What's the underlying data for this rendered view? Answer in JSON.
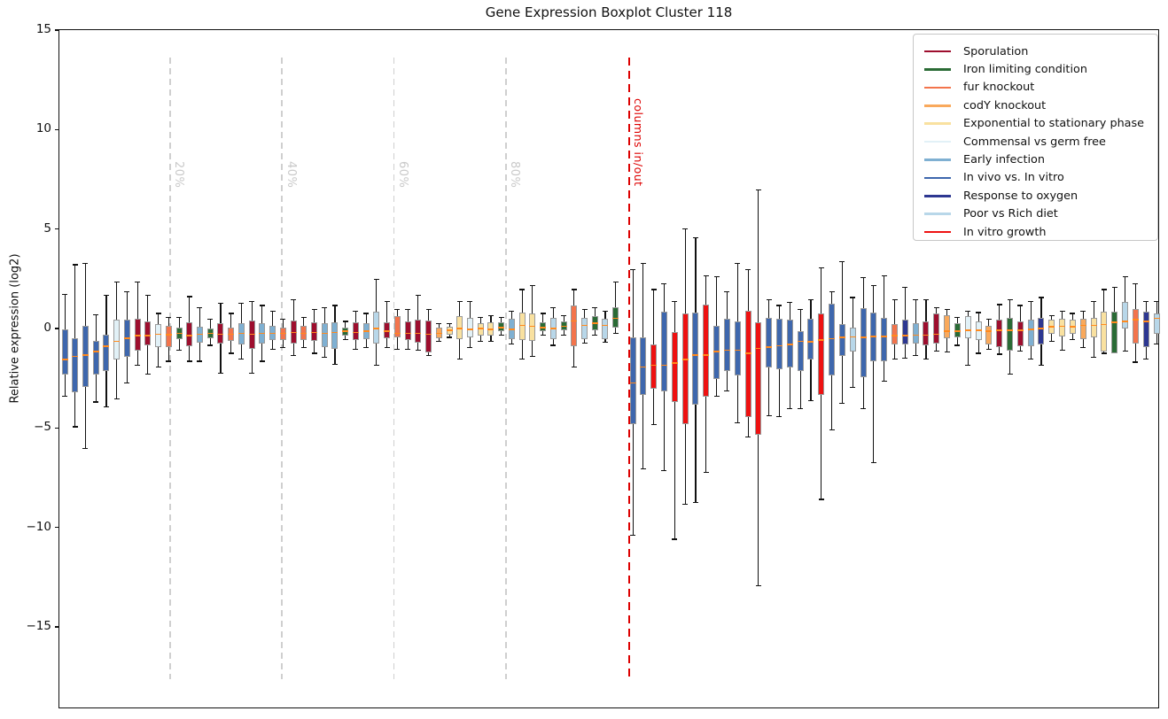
{
  "figure": {
    "title": "Gene Expression Boxplot Cluster 118",
    "y_axis_label": "Relative expression (log2)"
  },
  "y_axis": {
    "ticks": [
      {
        "v": 15,
        "label": "15"
      },
      {
        "v": 10,
        "label": "10"
      },
      {
        "v": 5,
        "label": "5"
      },
      {
        "v": 0,
        "label": "0"
      },
      {
        "v": -5,
        "label": "−5"
      },
      {
        "v": -10,
        "label": "−10"
      },
      {
        "v": -15,
        "label": "−15"
      }
    ]
  },
  "annotations": {
    "percent_lines": [
      {
        "pct": 20,
        "label": "20%"
      },
      {
        "pct": 40,
        "label": "40%"
      },
      {
        "pct": 60,
        "label": "60%"
      },
      {
        "pct": 80,
        "label": "80%"
      }
    ],
    "percent_line_color": "#cfcfcf",
    "percent_label_color": "#c9c9c9",
    "divider": {
      "label": "columns in/out",
      "color": "#dd0000"
    }
  },
  "legend": {
    "items": [
      {
        "label": "Sporulation",
        "group": "sporulation"
      },
      {
        "label": "Iron limiting condition",
        "group": "iron"
      },
      {
        "label": "fur knockout",
        "group": "fur"
      },
      {
        "label": "codY knockout",
        "group": "codY"
      },
      {
        "label": "Exponential to stationary phase",
        "group": "expo"
      },
      {
        "label": "Commensal vs germ free",
        "group": "commensal"
      },
      {
        "label": "Early infection",
        "group": "early"
      },
      {
        "label": "In vivo vs. In vitro",
        "group": "invivo"
      },
      {
        "label": "Response to oxygen",
        "group": "oxygen"
      },
      {
        "label": "Poor vs Rich diet",
        "group": "poorrich"
      },
      {
        "label": "In vitro growth",
        "group": "invitro"
      }
    ]
  },
  "chart_data": {
    "type": "boxplot",
    "title": "Gene Expression Boxplot Cluster 118",
    "xlabel": "",
    "ylabel": "Relative expression (log2)",
    "ylim": [
      -19.1,
      15.05
    ],
    "y_ticks": [
      15,
      10,
      5,
      0,
      -5,
      -10,
      -15
    ],
    "grid": false,
    "legend_position": "upper right",
    "median_color": "#ff8a1e",
    "whisker_color": "#111111",
    "box_edge_color": "#9a9a9a",
    "group_colors": {
      "sporulation": "#9e0e2e",
      "iron": "#2a6b35",
      "fur": "#f3744c",
      "codY": "#f9a95c",
      "expo": "#f9e1a0",
      "commensal": "#e2f1f7",
      "early": "#7fb0d2",
      "invivo": "#3e67ad",
      "oxygen": "#2d3791",
      "poorrich": "#b8d7e9",
      "invitro": "#ee1111"
    },
    "box_format": [
      "group",
      "median",
      "q1",
      "q3",
      "whisker_low",
      "whisker_high"
    ],
    "boxes_in": [
      [
        "invivo",
        -1.5,
        -2.25,
        0,
        -3.35,
        1.75
      ],
      [
        "invivo",
        -1.35,
        -3.15,
        -0.45,
        -4.9,
        3.25
      ],
      [
        "invivo",
        -1.3,
        -2.9,
        0.2,
        -6,
        3.3
      ],
      [
        "invivo",
        -1.1,
        -2.25,
        -0.6,
        -3.65,
        0.75
      ],
      [
        "invivo",
        -0.85,
        -2.1,
        -0.25,
        -3.9,
        1.7
      ],
      [
        "commensal",
        -0.6,
        -1.5,
        0.5,
        -3.5,
        2.4
      ],
      [
        "invivo",
        -0.45,
        -1.4,
        0.5,
        -2.7,
        1.9
      ],
      [
        "sporulation",
        -0.3,
        -1.05,
        0.55,
        -1.8,
        2.4
      ],
      [
        "sporulation",
        -0.3,
        -0.8,
        0.4,
        -2.25,
        1.7
      ],
      [
        "commensal",
        -0.25,
        -0.9,
        0.25,
        -1.9,
        0.8
      ],
      [
        "fur",
        -0.27,
        -0.9,
        0.2,
        -1.6,
        0.6
      ],
      [
        "iron",
        -0.2,
        -0.5,
        0.1,
        -1.05,
        0.6
      ],
      [
        "sporulation",
        -0.3,
        -0.85,
        0.35,
        -1.6,
        1.65
      ],
      [
        "early",
        -0.24,
        -0.65,
        0.15,
        -1.6,
        1.1
      ],
      [
        "iron",
        -0.2,
        -0.45,
        0.05,
        -0.8,
        0.5
      ],
      [
        "sporulation",
        -0.25,
        -0.7,
        0.3,
        -2.2,
        1.3
      ],
      [
        "fur",
        -0.25,
        -0.6,
        0.1,
        -1.2,
        0.8
      ],
      [
        "early",
        -0.2,
        -0.75,
        0.3,
        -1.5,
        1.3
      ],
      [
        "sporulation",
        -0.25,
        -1,
        0.45,
        -2.2,
        1.4
      ],
      [
        "early",
        -0.2,
        -0.7,
        0.3,
        -1.6,
        1.2
      ],
      [
        "early",
        -0.2,
        -0.55,
        0.2,
        -1,
        0.9
      ],
      [
        "fur",
        -0.2,
        -0.55,
        0.1,
        -0.9,
        0.5
      ],
      [
        "sporulation",
        -0.15,
        -0.7,
        0.45,
        -1.3,
        1.5
      ],
      [
        "fur",
        -0.2,
        -0.55,
        0.2,
        -0.9,
        0.6
      ],
      [
        "sporulation",
        -0.15,
        -0.6,
        0.35,
        -1.2,
        1
      ],
      [
        "early",
        -0.2,
        -0.9,
        0.3,
        -1.4,
        1.1
      ],
      [
        "early",
        -0.15,
        -1,
        0.35,
        -1.75,
        1.2
      ],
      [
        "iron",
        -0.1,
        -0.3,
        0.1,
        -0.5,
        0.4
      ],
      [
        "sporulation",
        -0.15,
        -0.55,
        0.35,
        -1,
        0.9
      ],
      [
        "early",
        -0.1,
        -0.5,
        0.3,
        -0.9,
        0.8
      ],
      [
        "poorrich",
        0.05,
        -0.7,
        0.9,
        -1.8,
        2.5
      ],
      [
        "sporulation",
        -0.1,
        -0.45,
        0.35,
        -0.9,
        1.4
      ],
      [
        "fur",
        -0.2,
        -0.4,
        0.65,
        -1,
        1
      ],
      [
        "sporulation",
        -0.2,
        -0.55,
        0.4,
        -1,
        1
      ],
      [
        "sporulation",
        -0.2,
        -0.65,
        0.5,
        -1.05,
        1.7
      ],
      [
        "sporulation",
        -0.25,
        -1.15,
        0.45,
        -1.3,
        1
      ],
      [
        "codY",
        -0.2,
        -0.45,
        0.1,
        -0.6,
        0.3
      ],
      [
        "expo",
        -0.05,
        -0.25,
        0.15,
        -0.4,
        0.3
      ],
      [
        "expo",
        0.05,
        -0.5,
        0.65,
        -1.5,
        1.4
      ],
      [
        "commensal",
        0,
        -0.4,
        0.6,
        -0.9,
        1.4
      ],
      [
        "expo",
        0.05,
        -0.3,
        0.3,
        -0.6,
        0.6
      ],
      [
        "expo",
        0,
        -0.3,
        0.35,
        -0.6,
        0.7
      ],
      [
        "iron",
        0.1,
        -0.1,
        0.35,
        -0.3,
        0.6
      ],
      [
        "early",
        0,
        -0.5,
        0.55,
        -0.75,
        0.9
      ],
      [
        "expo",
        0.2,
        -0.55,
        0.85,
        -1.5,
        2
      ],
      [
        "expo",
        0.15,
        -0.6,
        0.8,
        -1.35,
        2.2
      ],
      [
        "iron",
        0.1,
        -0.1,
        0.35,
        -0.3,
        0.8
      ],
      [
        "poorrich",
        0.05,
        -0.5,
        0.6,
        -0.8,
        1.1
      ],
      [
        "iron",
        0.15,
        -0.05,
        0.4,
        -0.3,
        0.7
      ],
      [
        "fur",
        0.43,
        -0.85,
        1.2,
        -1.9,
        2
      ],
      [
        "poorrich",
        0.2,
        -0.5,
        0.6,
        -0.7,
        1
      ],
      [
        "iron",
        0.3,
        -0.05,
        0.65,
        -0.3,
        1.1
      ],
      [
        "poorrich",
        0.2,
        -0.5,
        0.55,
        -0.65,
        0.9
      ],
      [
        "iron",
        0.55,
        0.1,
        1.1,
        -0.2,
        2.4
      ]
    ],
    "boxes_out": [
      [
        "invivo",
        -2.7,
        -4.75,
        -0.4,
        -10.35,
        3
      ],
      [
        "invivo",
        -1.9,
        -3.3,
        -0.4,
        -7,
        3.3
      ],
      [
        "invitro",
        -1.8,
        -3,
        -0.75,
        -4.8,
        2
      ],
      [
        "invivo",
        -1.8,
        -3.1,
        0.9,
        -7.1,
        2.3
      ],
      [
        "invitro",
        -1.7,
        -3.65,
        -0.15,
        -10.55,
        1.4
      ],
      [
        "invitro",
        -1.5,
        -4.75,
        0.8,
        -8.8,
        5.05
      ],
      [
        "invivo",
        -1.3,
        -3.8,
        0.85,
        -8.7,
        4.6
      ],
      [
        "invitro",
        -1.3,
        -3.4,
        1.25,
        -7.2,
        2.7
      ],
      [
        "invivo",
        -1.1,
        -2.5,
        0.2,
        -3.35,
        2.65
      ],
      [
        "invivo",
        -1.05,
        -2.1,
        0.55,
        -3.1,
        1.9
      ],
      [
        "invivo",
        -1.05,
        -2.3,
        0.4,
        -4.7,
        3.3
      ],
      [
        "invitro",
        -1.2,
        -4.4,
        0.95,
        -5.4,
        3
      ],
      [
        "invitro",
        -0.95,
        -5.3,
        0.35,
        -12.9,
        7
      ],
      [
        "invivo",
        -0.9,
        -1.9,
        0.6,
        -4.35,
        1.5
      ],
      [
        "invivo",
        -0.83,
        -2,
        0.53,
        -4.4,
        1.2
      ],
      [
        "invivo",
        -0.75,
        -1.9,
        0.5,
        -4,
        1.35
      ],
      [
        "invivo",
        -0.6,
        -2.1,
        -0.1,
        -4,
        1
      ],
      [
        "invivo",
        -0.63,
        -1.5,
        0.55,
        -3.6,
        1.5
      ],
      [
        "invitro",
        -0.53,
        -3.3,
        0.8,
        -8.55,
        3.1
      ],
      [
        "invivo",
        -0.46,
        -2.3,
        1.3,
        -5.05,
        1.9
      ],
      [
        "invivo",
        -0.4,
        -1.35,
        0.25,
        -3.7,
        3.4
      ],
      [
        "poorrich",
        -0.37,
        -1.1,
        0.1,
        -2.9,
        1.6
      ],
      [
        "invivo",
        -0.4,
        -2.4,
        1.05,
        -4,
        2.6
      ],
      [
        "invivo",
        -0.35,
        -1.6,
        0.85,
        -6.7,
        2.2
      ],
      [
        "invivo",
        -0.35,
        -1.6,
        0.6,
        -2.6,
        2.7
      ],
      [
        "fur",
        -0.3,
        -0.77,
        0.26,
        -1.5,
        1.5
      ],
      [
        "oxygen",
        -0.3,
        -0.77,
        0.5,
        -1.45,
        2.1
      ],
      [
        "early",
        -0.28,
        -0.7,
        0.3,
        -1.3,
        1.5
      ],
      [
        "sporulation",
        -0.28,
        -0.8,
        0.4,
        -1.5,
        1.5
      ],
      [
        "sporulation",
        -0.25,
        -0.7,
        0.8,
        -1.1,
        1.1
      ],
      [
        "codY",
        -0.1,
        -0.45,
        0.7,
        -1.15,
        1
      ],
      [
        "iron",
        -0.1,
        -0.4,
        0.3,
        -0.8,
        0.6
      ],
      [
        "commensal",
        -0.04,
        -0.46,
        0.65,
        -1.8,
        0.9
      ],
      [
        "commensal",
        -0.05,
        -0.55,
        0.4,
        -1.2,
        0.85
      ],
      [
        "codY",
        -0.1,
        -0.76,
        0.2,
        -1,
        0.5
      ],
      [
        "sporulation",
        -0.05,
        -0.9,
        0.5,
        -1.25,
        1.25
      ],
      [
        "iron",
        -0.05,
        -1.05,
        0.56,
        -2.25,
        1.5
      ],
      [
        "sporulation",
        -0.05,
        -0.85,
        0.4,
        -1.1,
        1.2
      ],
      [
        "early",
        0,
        -0.85,
        0.5,
        -1.5,
        1.4
      ],
      [
        "oxygen",
        0.05,
        -0.75,
        0.6,
        -1.8,
        1.6
      ],
      [
        "expo",
        0.13,
        -0.24,
        0.5,
        -0.6,
        0.7
      ],
      [
        "expo",
        0.15,
        -0.35,
        0.55,
        -1.05,
        0.9
      ],
      [
        "expo",
        0.13,
        -0.2,
        0.5,
        -0.5,
        0.8
      ],
      [
        "codY",
        0.2,
        -0.48,
        0.55,
        -0.9,
        0.9
      ],
      [
        "expo",
        0.2,
        -0.4,
        0.6,
        -1.4,
        1.4
      ],
      [
        "expo",
        0.25,
        -1.1,
        0.9,
        -1.2,
        2
      ],
      [
        "iron",
        0.35,
        -1.2,
        0.9,
        -1.05,
        2.1
      ],
      [
        "poorrich",
        0.4,
        0.05,
        1.4,
        -1.1,
        2.65
      ],
      [
        "fur",
        0.5,
        -0.7,
        1.03,
        -1.65,
        2.3
      ],
      [
        "oxygen",
        0.4,
        -0.9,
        0.9,
        -1.5,
        1.4
      ],
      [
        "poorrich",
        0.55,
        -0.2,
        0.8,
        -0.75,
        1.4
      ]
    ]
  }
}
